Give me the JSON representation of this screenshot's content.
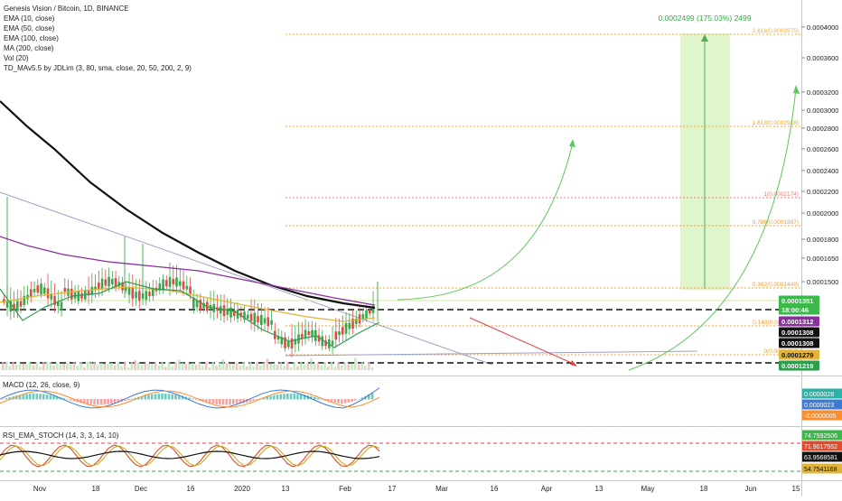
{
  "legend": {
    "title": "Genesis Vision / Bitcoin, 1D, BINANCE",
    "ema10": "EMA (10, close)",
    "ema50": "EMA (50, close)",
    "ema100": "EMA (100, close)",
    "ma200": "MA (200, close)",
    "vol": "Vol (20)",
    "tdma": "TD_MAv5.5 by JDLim (3, 80, sma, close, 20, 50, 200, 2, 9)"
  },
  "panes": {
    "macd": "MACD (12, 26, close, 9)",
    "rsi": "RSI_EMA_STOCH (14, 3, 3, 14, 10)"
  },
  "measure_label": "0.0002499 (175.03%) 2499",
  "colors": {
    "ema10": "#2e9e4e",
    "ema50": "#e0b43a",
    "ema100": "#8b2fa0",
    "ma200": "#111111",
    "up": "#3aa84a",
    "down": "#e24a4a",
    "fib": "#f0a030",
    "curve": "#5ec85e",
    "projection": "#e04040",
    "measure_fill": "#d9f3c2",
    "trendline": "#9aa0c8",
    "macd_line": "#3a7bd5",
    "signal_line": "#ff8c2a",
    "rsi_line": "#111111",
    "stoch_k": "#e04a2e",
    "stoch_d": "#c8b020"
  },
  "chart_data": [
    {
      "type": "candlestick",
      "title": "Genesis Vision / Bitcoin, 1D, BINANCE",
      "y_axis_ticks": [
        "0.0004000",
        "0.0003600",
        "0.0003200",
        "0.0003000",
        "0.0002800",
        "0.0002600",
        "0.0002400",
        "0.0002200",
        "0.0002000",
        "0.0001800",
        "0.0001650",
        "0.0001500"
      ],
      "x_axis_ticks": [
        "Nov",
        "18",
        "Dec",
        "16",
        "2020",
        "13",
        "Feb",
        "17",
        "Mar",
        "16",
        "Apr",
        "13",
        "May",
        "18",
        "Jun",
        "15"
      ],
      "price_labels": [
        {
          "text": "0.0001351",
          "bg": "#3ab84a",
          "fg": "#ffffff"
        },
        {
          "text": "18:00:46",
          "bg": "#3ab84a",
          "fg": "#ffffff"
        },
        {
          "text": "0.0001312",
          "bg": "#8b2fa0",
          "fg": "#ffffff"
        },
        {
          "text": "0.0001308",
          "bg": "#111111",
          "fg": "#ffffff"
        },
        {
          "text": "0.0001308",
          "bg": "#111111",
          "fg": "#ffffff"
        },
        {
          "text": "0.0001279",
          "bg": "#e0b43a",
          "fg": "#111111"
        },
        {
          "text": "0.0001219",
          "bg": "#2e9e4e",
          "fg": "#ffffff"
        }
      ],
      "fib_levels": [
        {
          "ratio": "2.618",
          "value": "0.0003975"
        },
        {
          "ratio": "1.618",
          "value": "0.0002918"
        },
        {
          "ratio": "1",
          "value": "0.0002174"
        },
        {
          "ratio": "0.786",
          "value": "0.0001897"
        },
        {
          "ratio": "0.382",
          "value": "0.0001449"
        },
        {
          "ratio": "0.148",
          "value": "0.0001190"
        },
        {
          "ratio": "0",
          "value": "0.0001036"
        }
      ],
      "measure": {
        "change": "0.0002499",
        "percent": "175.03%",
        "ticks": "2499"
      }
    },
    {
      "type": "line",
      "title": "MACD (12, 26, close, 9)",
      "price_labels": [
        {
          "text": "0.0000028",
          "bg": "#2bb3a8",
          "fg": "#ffffff"
        },
        {
          "text": "0.0000023",
          "bg": "#3a7bd5",
          "fg": "#ffffff"
        },
        {
          "text": "-0.0000005",
          "bg": "#ff8c2a",
          "fg": "#ffffff"
        }
      ]
    },
    {
      "type": "line",
      "title": "RSI_EMA_STOCH (14, 3, 3, 14, 10)",
      "price_labels": [
        {
          "text": "74.7592506",
          "bg": "#3ab84a",
          "fg": "#ffffff"
        },
        {
          "text": "71.9017552",
          "bg": "#e04a2e",
          "fg": "#ffffff"
        },
        {
          "text": "63.9568581",
          "bg": "#111111",
          "fg": "#ffffff"
        },
        {
          "text": "54.7541168",
          "bg": "#e0b43a",
          "fg": "#111111"
        }
      ]
    }
  ]
}
